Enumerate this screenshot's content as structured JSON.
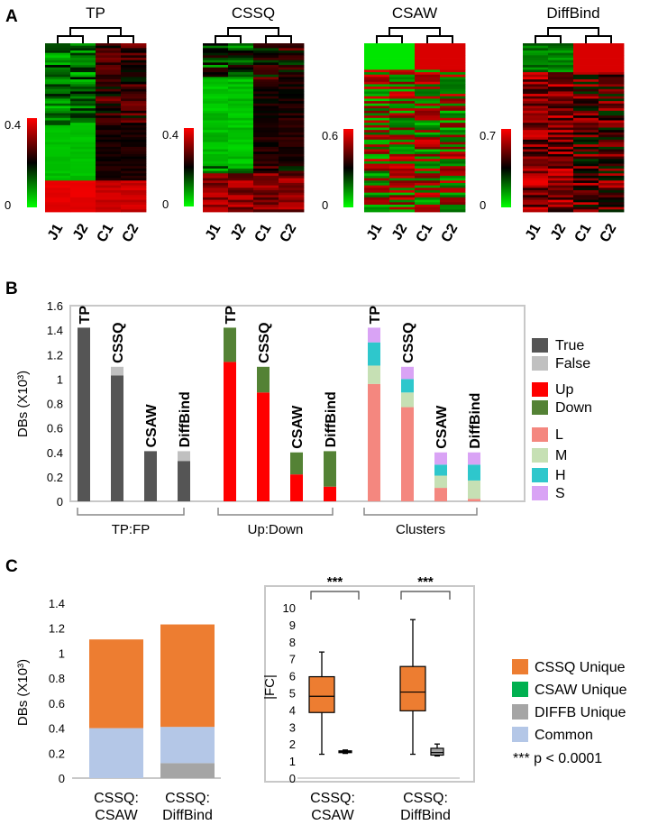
{
  "panel_labels": {
    "a": "A",
    "b": "B",
    "c": "C"
  },
  "chart_data": [
    {
      "type": "heatmap",
      "panel": "A",
      "heatmaps": [
        {
          "title": "TP",
          "columns": [
            "J1",
            "J2",
            "C1",
            "C2"
          ],
          "color_range": [
            "0",
            "0.4"
          ],
          "pattern": "tp"
        },
        {
          "title": "CSSQ",
          "columns": [
            "J1",
            "J2",
            "C1",
            "C2"
          ],
          "color_range": [
            "0",
            "0.4"
          ],
          "pattern": "cssq"
        },
        {
          "title": "CSAW",
          "columns": [
            "J1",
            "J2",
            "C1",
            "C2"
          ],
          "color_range": [
            "0",
            "0.6"
          ],
          "pattern": "csaw"
        },
        {
          "title": "DiffBind",
          "columns": [
            "J1",
            "J2",
            "C1",
            "C2"
          ],
          "color_range": [
            "0",
            "0.7"
          ],
          "pattern": "diffbind"
        }
      ],
      "colors": {
        "high": "#ff0000",
        "mid": "#000000",
        "low": "#00ff00"
      }
    },
    {
      "type": "bar",
      "panel": "B",
      "stacked": true,
      "ylabel": "DBs (X10³)",
      "ylim": [
        0,
        1.6
      ],
      "yticks": [
        "0",
        "0.2",
        "0.4",
        "0.6",
        "0.8",
        "1",
        "1.2",
        "1.4",
        "1.6"
      ],
      "groups": [
        {
          "label": "TP:FP",
          "bars": [
            {
              "label": "TP",
              "segments": [
                {
                  "name": "True",
                  "value": 1.42
                }
              ]
            },
            {
              "label": "CSSQ",
              "segments": [
                {
                  "name": "True",
                  "value": 1.03
                },
                {
                  "name": "False",
                  "value": 0.07
                }
              ]
            },
            {
              "label": "CSAW",
              "segments": [
                {
                  "name": "True",
                  "value": 0.41
                }
              ]
            },
            {
              "label": "DiffBind",
              "segments": [
                {
                  "name": "True",
                  "value": 0.33
                },
                {
                  "name": "False",
                  "value": 0.08
                }
              ]
            }
          ]
        },
        {
          "label": "Up:Down",
          "bars": [
            {
              "label": "TP",
              "segments": [
                {
                  "name": "Up",
                  "value": 1.14
                },
                {
                  "name": "Down",
                  "value": 0.28
                }
              ]
            },
            {
              "label": "CSSQ",
              "segments": [
                {
                  "name": "Up",
                  "value": 0.89
                },
                {
                  "name": "Down",
                  "value": 0.21
                }
              ]
            },
            {
              "label": "CSAW",
              "segments": [
                {
                  "name": "Up",
                  "value": 0.22
                },
                {
                  "name": "Down",
                  "value": 0.18
                }
              ]
            },
            {
              "label": "DiffBind",
              "segments": [
                {
                  "name": "Up",
                  "value": 0.12
                },
                {
                  "name": "Down",
                  "value": 0.29
                }
              ]
            }
          ]
        },
        {
          "label": "Clusters",
          "bars": [
            {
              "label": "TP",
              "segments": [
                {
                  "name": "L",
                  "value": 0.96
                },
                {
                  "name": "M",
                  "value": 0.15
                },
                {
                  "name": "H",
                  "value": 0.19
                },
                {
                  "name": "S",
                  "value": 0.12
                }
              ]
            },
            {
              "label": "CSSQ",
              "segments": [
                {
                  "name": "L",
                  "value": 0.77
                },
                {
                  "name": "M",
                  "value": 0.12
                },
                {
                  "name": "H",
                  "value": 0.11
                },
                {
                  "name": "S",
                  "value": 0.1
                }
              ]
            },
            {
              "label": "CSAW",
              "segments": [
                {
                  "name": "L",
                  "value": 0.11
                },
                {
                  "name": "M",
                  "value": 0.1
                },
                {
                  "name": "H",
                  "value": 0.09
                },
                {
                  "name": "S",
                  "value": 0.1
                }
              ]
            },
            {
              "label": "DiffBind",
              "segments": [
                {
                  "name": "L",
                  "value": 0.02
                },
                {
                  "name": "M",
                  "value": 0.15
                },
                {
                  "name": "H",
                  "value": 0.13
                },
                {
                  "name": "S",
                  "value": 0.1
                }
              ]
            }
          ]
        }
      ],
      "legend": [
        {
          "name": "True",
          "color": "#555555"
        },
        {
          "name": "False",
          "color": "#c0c0c0"
        },
        {
          "name": "Up",
          "color": "#ff0000"
        },
        {
          "name": "Down",
          "color": "#548235"
        },
        {
          "name": "L",
          "color": "#f4877f"
        },
        {
          "name": "M",
          "color": "#c6e0b4"
        },
        {
          "name": "H",
          "color": "#2ec7cc"
        },
        {
          "name": "S",
          "color": "#d9a3f5"
        }
      ]
    },
    {
      "type": "bar",
      "panel": "C-left",
      "stacked": true,
      "ylabel": "DBs (X10³)",
      "ylim": [
        0,
        1.4
      ],
      "yticks": [
        "0",
        "0.2",
        "0.4",
        "0.6",
        "0.8",
        "1",
        "1.2",
        "1.4"
      ],
      "categories": [
        [
          "CSSQ:",
          "CSAW"
        ],
        [
          "CSSQ:",
          "DiffBind"
        ]
      ],
      "series": [
        {
          "name": "DIFFB Unique",
          "values": [
            0,
            0.12
          ]
        },
        {
          "name": "Common",
          "values": [
            0.4,
            0.29
          ]
        },
        {
          "name": "CSSQ Unique",
          "values": [
            0.71,
            0.82
          ]
        }
      ]
    },
    {
      "type": "box",
      "panel": "C-right",
      "ylabel": "|FC|",
      "ylim": [
        0,
        10
      ],
      "yticks": [
        "0",
        "1",
        "2",
        "3",
        "4",
        "5",
        "6",
        "7",
        "8",
        "9",
        "10"
      ],
      "categories": [
        [
          "CSSQ:",
          "CSAW"
        ],
        [
          "CSSQ:",
          "DiffBind"
        ]
      ],
      "boxes": [
        {
          "group": 0,
          "name": "CSSQ Unique",
          "min": 1.4,
          "q1": 3.85,
          "median": 4.8,
          "q3": 5.95,
          "max": 7.4
        },
        {
          "group": 0,
          "name": "CSAW Unique",
          "min": 1.45,
          "q1": 1.5,
          "median": 1.55,
          "q3": 1.6,
          "max": 1.65
        },
        {
          "group": 1,
          "name": "CSSQ Unique",
          "min": 1.4,
          "q1": 3.95,
          "median": 5.05,
          "q3": 6.55,
          "max": 9.3
        },
        {
          "group": 1,
          "name": "DIFFB Unique",
          "min": 1.3,
          "q1": 1.35,
          "median": 1.5,
          "q3": 1.75,
          "max": 2.0
        }
      ],
      "significance": [
        "***",
        "***"
      ],
      "legend": [
        {
          "name": "CSSQ Unique",
          "color": "#ed7d31"
        },
        {
          "name": "CSAW Unique",
          "color": "#00b050"
        },
        {
          "name": "DIFFB Unique",
          "color": "#a5a5a5"
        },
        {
          "name": "Common",
          "color": "#b4c7e7"
        }
      ],
      "note": "*** p < 0.0001"
    }
  ]
}
